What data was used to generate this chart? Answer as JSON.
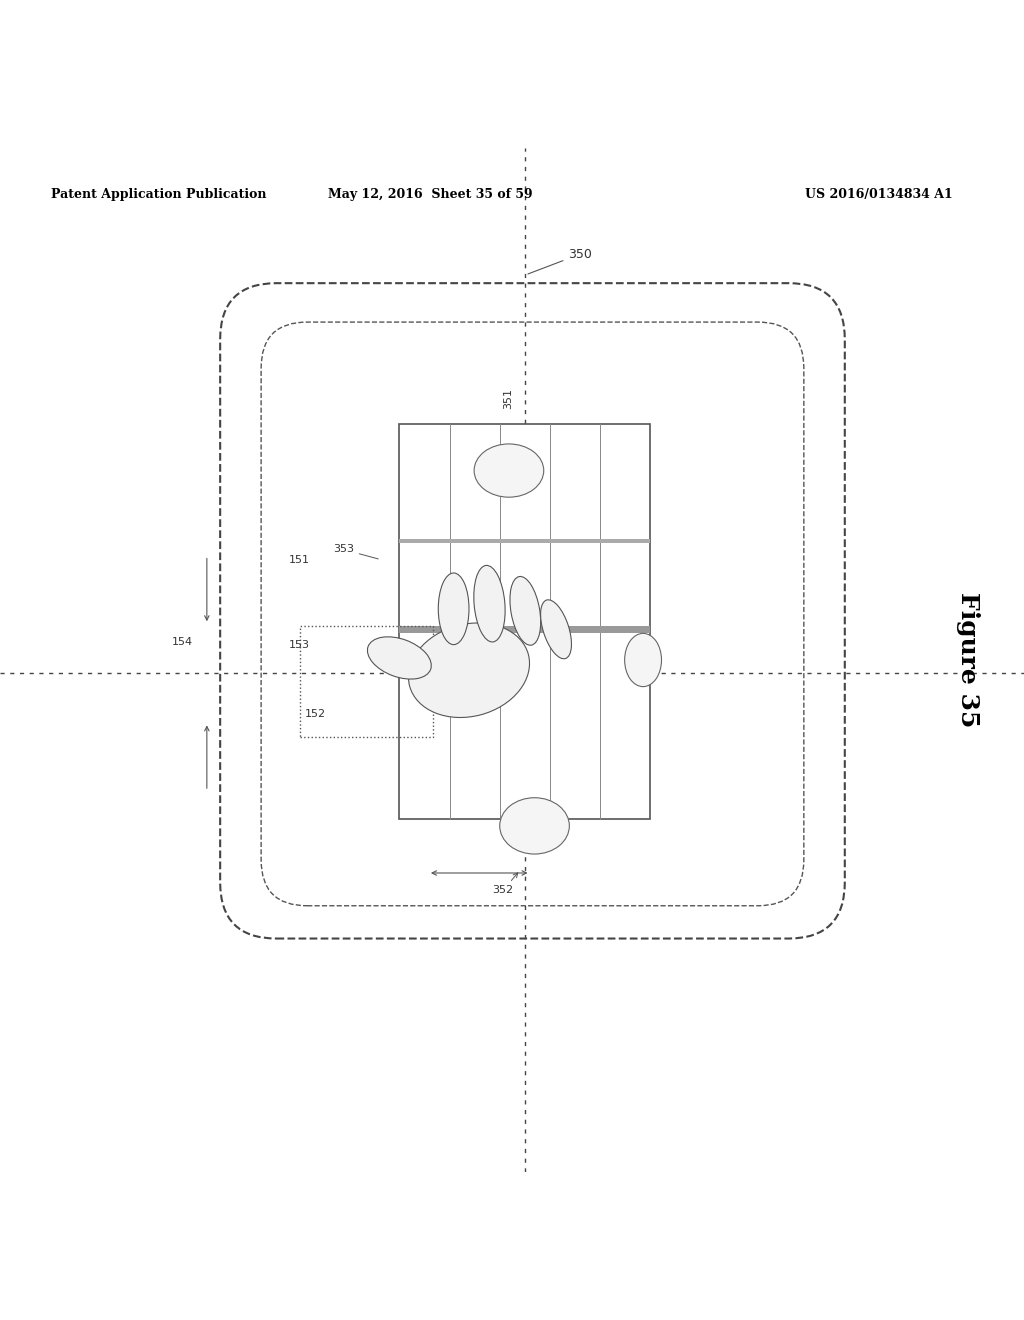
{
  "bg_color": "#ffffff",
  "header_left": "Patent Application Publication",
  "header_mid": "May 12, 2016  Sheet 35 of 59",
  "header_right": "US 2016/0134834 A1",
  "figure_label": "Figure 35",
  "fig_number": "350",
  "label_351": "351",
  "label_352": "352",
  "label_353": "353",
  "label_151": "151",
  "label_152": "152",
  "label_153": "153",
  "label_154": "154"
}
